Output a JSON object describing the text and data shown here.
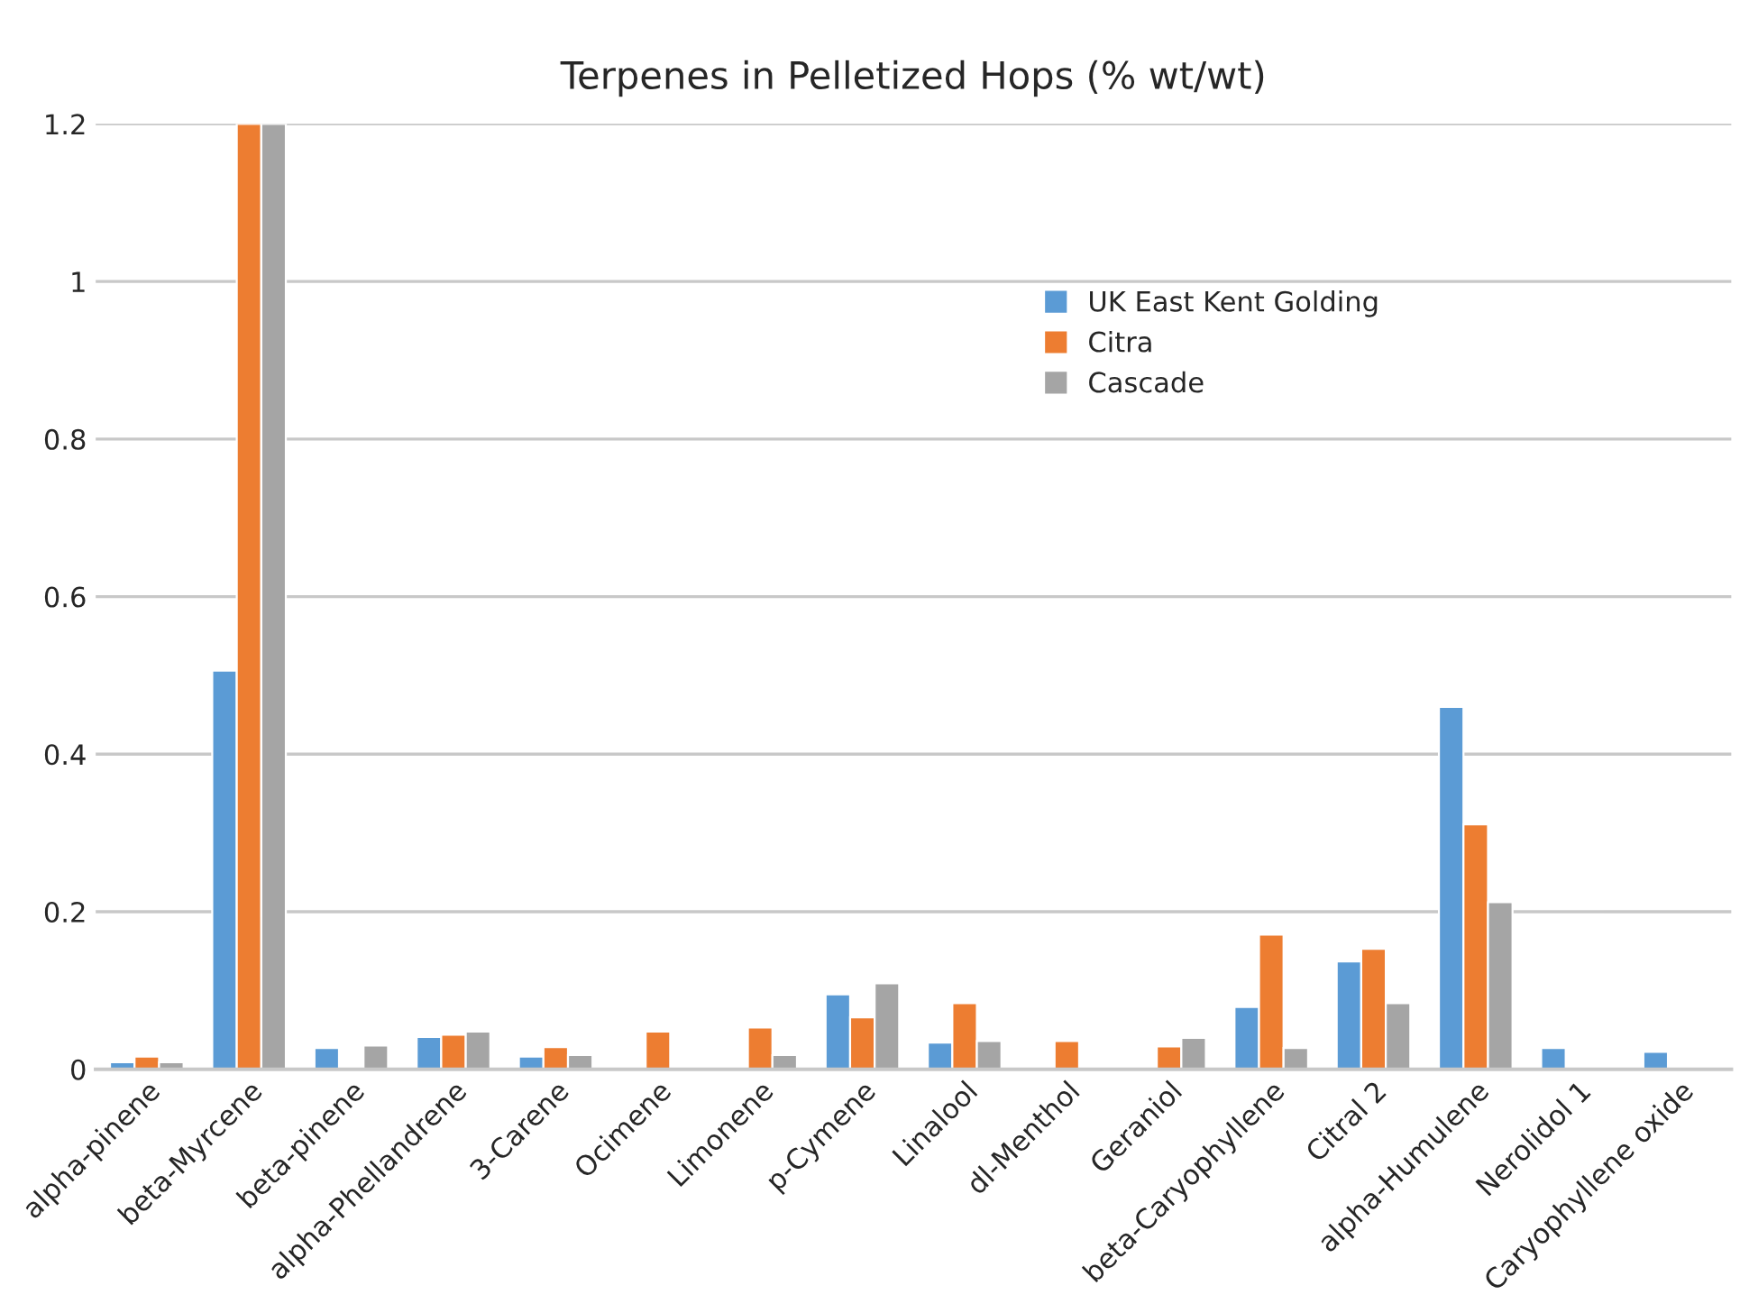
{
  "chart_data": {
    "type": "bar",
    "title": "Terpenes in Pelletized Hops (% wt/wt)",
    "categories": [
      "alpha-pinene",
      "beta-Myrcene",
      "beta-pinene",
      "alpha-Phellandrene",
      "3-Carene",
      "Ocimene",
      "Limonene",
      "p-Cymene",
      "Linalool",
      "dl-Menthol",
      "Geraniol",
      "beta-Caryophyllene",
      "Citral 2",
      "alpha-Humulene",
      "Nerolidol 1",
      "Caryophyllene oxide"
    ],
    "series": [
      {
        "name": "UK East Kent Golding",
        "color": "#5b9bd5",
        "values": [
          0.009,
          0.506,
          0.027,
          0.041,
          0.016,
          null,
          null,
          0.095,
          0.034,
          null,
          null,
          0.079,
          0.137,
          0.46,
          0.027,
          0.022
        ]
      },
      {
        "name": "Citra",
        "color": "#ed7d31",
        "values": [
          0.016,
          1.2,
          null,
          0.044,
          0.028,
          0.048,
          0.053,
          0.066,
          0.084,
          0.036,
          0.029,
          0.171,
          0.153,
          0.311,
          null,
          null
        ]
      },
      {
        "name": "Cascade",
        "color": "#a5a5a5",
        "values": [
          0.009,
          1.2,
          0.03,
          0.048,
          0.018,
          null,
          0.018,
          0.109,
          0.036,
          null,
          0.04,
          0.027,
          0.084,
          0.212,
          null,
          null
        ]
      }
    ],
    "ylim": [
      0,
      1.2
    ],
    "yticks": [
      0,
      0.2,
      0.4,
      0.6,
      0.8,
      1,
      1.2
    ],
    "grid": "y",
    "legend": "top right"
  }
}
